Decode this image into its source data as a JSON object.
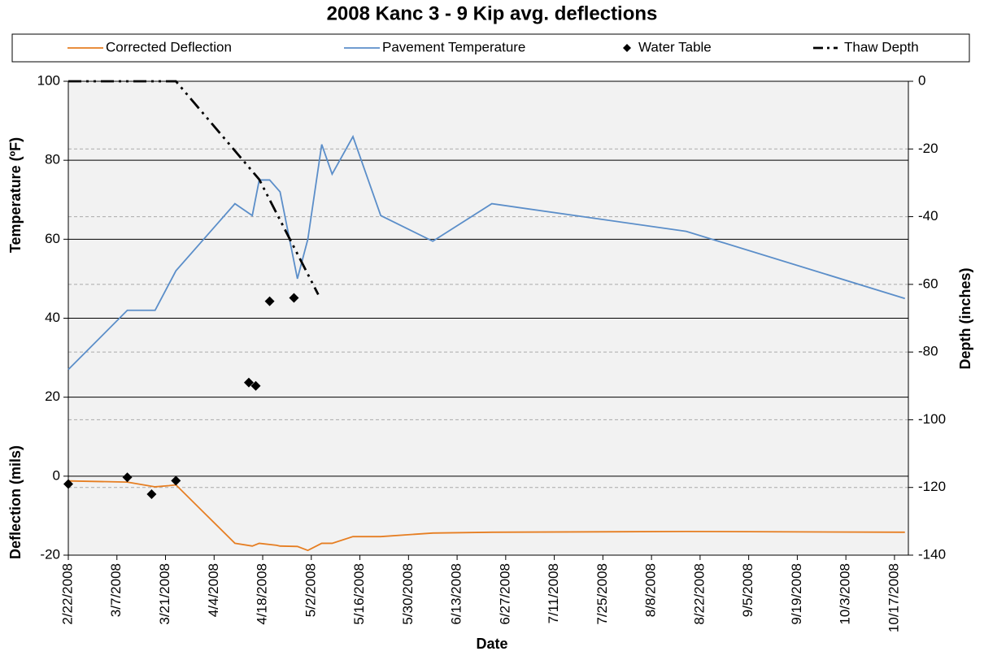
{
  "chart_data": {
    "type": "line",
    "title": "2008 Kanc 3 - 9 Kip avg. deflections",
    "xlabel": "Date",
    "ylabels": [
      "Temperature (ºF)",
      "Deflection (mils)"
    ],
    "y2label": "Depth (inches)",
    "xlim": [
      "2008-02-22",
      "2008-10-21"
    ],
    "xticks": [
      {
        "value": "2008-02-22",
        "label": "2/22/2008"
      },
      {
        "value": "2008-03-07",
        "label": "3/7/2008"
      },
      {
        "value": "2008-03-21",
        "label": "3/21/2008"
      },
      {
        "value": "2008-04-04",
        "label": "4/4/2008"
      },
      {
        "value": "2008-04-18",
        "label": "4/18/2008"
      },
      {
        "value": "2008-05-02",
        "label": "5/2/2008"
      },
      {
        "value": "2008-05-16",
        "label": "5/16/2008"
      },
      {
        "value": "2008-05-30",
        "label": "5/30/2008"
      },
      {
        "value": "2008-06-13",
        "label": "6/13/2008"
      },
      {
        "value": "2008-06-27",
        "label": "6/27/2008"
      },
      {
        "value": "2008-07-11",
        "label": "7/11/2008"
      },
      {
        "value": "2008-07-25",
        "label": "7/25/2008"
      },
      {
        "value": "2008-08-08",
        "label": "8/8/2008"
      },
      {
        "value": "2008-08-22",
        "label": "8/22/2008"
      },
      {
        "value": "2008-09-05",
        "label": "9/5/2008"
      },
      {
        "value": "2008-09-19",
        "label": "9/19/2008"
      },
      {
        "value": "2008-10-03",
        "label": "10/3/2008"
      },
      {
        "value": "2008-10-17",
        "label": "10/17/2008"
      }
    ],
    "ylim": [
      -20,
      100
    ],
    "yticks": [
      -20,
      0,
      20,
      40,
      60,
      80,
      100
    ],
    "y2lim": [
      -140,
      0
    ],
    "y2ticks": [
      -140,
      -120,
      -100,
      -80,
      -60,
      -40,
      -20,
      0
    ],
    "grid": true,
    "legend": "top",
    "series": [
      {
        "name": "Corrected Deflection",
        "color": "#e67e22",
        "style": "line",
        "x": [
          "2008-02-22",
          "2008-03-10",
          "2008-03-18",
          "2008-03-22",
          "2008-03-24",
          "2008-04-10",
          "2008-04-15",
          "2008-04-17",
          "2008-04-22",
          "2008-04-23",
          "2008-04-28",
          "2008-05-01",
          "2008-05-05",
          "2008-05-08",
          "2008-05-14",
          "2008-05-22",
          "2008-06-06",
          "2008-06-23",
          "2008-08-18",
          "2008-10-20"
        ],
        "values": [
          -1.2,
          -1.5,
          -2.7,
          -2.4,
          -2.2,
          -17,
          -17.7,
          -17,
          -17.5,
          -17.7,
          -17.8,
          -18.8,
          -17,
          -17,
          -15.3,
          -15.3,
          -14.4,
          -14.2,
          -14,
          -14.2
        ]
      },
      {
        "name": "Pavement Temperature",
        "color": "#5b8ec9",
        "style": "line",
        "x": [
          "2008-02-22",
          "2008-03-10",
          "2008-03-18",
          "2008-03-24",
          "2008-04-10",
          "2008-04-15",
          "2008-04-17",
          "2008-04-20",
          "2008-04-23",
          "2008-04-28",
          "2008-05-01",
          "2008-05-05",
          "2008-05-08",
          "2008-05-14",
          "2008-05-22",
          "2008-06-06",
          "2008-06-23",
          "2008-08-18",
          "2008-10-20"
        ],
        "values": [
          27,
          42,
          42,
          52,
          69,
          66,
          75,
          75,
          72,
          50,
          60,
          84,
          76.5,
          86,
          66,
          59.5,
          69,
          62,
          45
        ]
      },
      {
        "name": "Water Table",
        "color": "#000000",
        "style": "marker",
        "axis": "y2",
        "x": [
          "2008-02-22",
          "2008-03-10",
          "2008-03-17",
          "2008-03-24",
          "2008-04-14",
          "2008-04-16",
          "2008-04-20",
          "2008-04-27"
        ],
        "values": [
          -119,
          -117,
          -122,
          -118,
          -89,
          -90,
          -65,
          -64
        ]
      },
      {
        "name": "Thaw Depth",
        "color": "#000000",
        "style": "dashdot",
        "axis": "y2",
        "x": [
          "2008-02-22",
          "2008-03-24",
          "2008-04-17",
          "2008-05-04"
        ],
        "values": [
          0,
          0,
          -29,
          -63
        ]
      }
    ]
  }
}
